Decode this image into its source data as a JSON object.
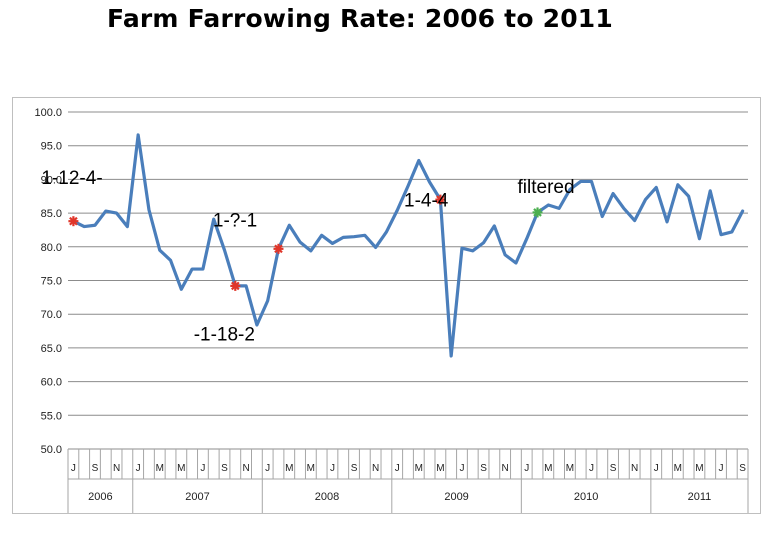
{
  "chart_data": {
    "type": "line",
    "title": "Farm Farrowing Rate: 2006 to 2011",
    "xlabel": "",
    "ylabel": "",
    "ylim": [
      50.0,
      100.0
    ],
    "yticks": [
      "50.0",
      "55.0",
      "60.0",
      "65.0",
      "70.0",
      "75.0",
      "80.0",
      "85.0",
      "90.0",
      "95.0",
      "100.0"
    ],
    "month_labels": [
      "J",
      "S",
      "N",
      "J",
      "M",
      "M",
      "J",
      "S",
      "N",
      "J",
      "M",
      "M",
      "J",
      "S",
      "N",
      "J",
      "M",
      "M",
      "J",
      "S",
      "N",
      "J",
      "M",
      "M",
      "J",
      "S",
      "N",
      "J",
      "M",
      "M",
      "J",
      "S"
    ],
    "years": [
      {
        "label": "2006",
        "span": 6
      },
      {
        "label": "2007",
        "span": 12
      },
      {
        "label": "2008",
        "span": 12
      },
      {
        "label": "2009",
        "span": 12
      },
      {
        "label": "2010",
        "span": 12
      },
      {
        "label": "2011",
        "span": 9
      }
    ],
    "grid": true,
    "legend": "none",
    "series": [
      {
        "color": "#4a7ebb",
        "x": [
          "2006-07",
          "2006-08",
          "2006-09",
          "2006-10",
          "2006-11",
          "2006-12",
          "2007-01",
          "2007-02",
          "2007-03",
          "2007-04",
          "2007-05",
          "2007-06",
          "2007-07",
          "2007-08",
          "2007-09",
          "2007-10",
          "2007-11",
          "2007-12",
          "2008-01",
          "2008-02",
          "2008-03",
          "2008-04",
          "2008-05",
          "2008-06",
          "2008-07",
          "2008-08",
          "2008-09",
          "2008-10",
          "2008-11",
          "2008-12",
          "2009-01",
          "2009-02",
          "2009-03",
          "2009-04",
          "2009-05",
          "2009-06",
          "2009-07",
          "2009-08",
          "2009-09",
          "2009-10",
          "2009-11",
          "2009-12",
          "2010-01",
          "2010-02",
          "2010-03",
          "2010-04",
          "2010-05",
          "2010-06",
          "2010-07",
          "2010-08",
          "2010-09",
          "2010-10",
          "2010-11",
          "2010-12",
          "2011-01",
          "2011-02",
          "2011-03",
          "2011-04",
          "2011-05",
          "2011-06",
          "2011-07",
          "2011-08",
          "2011-09"
        ],
        "values": [
          83.8,
          83.0,
          83.2,
          85.3,
          85.0,
          83.0,
          96.6,
          85.5,
          79.5,
          78.0,
          73.7,
          76.7,
          76.7,
          84.1,
          79.5,
          74.2,
          74.2,
          68.4,
          72.0,
          79.7,
          83.2,
          80.7,
          79.4,
          81.7,
          80.5,
          81.4,
          81.5,
          81.7,
          79.9,
          82.2,
          85.4,
          89.0,
          92.8,
          89.6,
          87.0,
          63.8,
          79.8,
          79.4,
          80.6,
          83.1,
          78.8,
          77.6,
          81.2,
          85.1,
          86.2,
          85.7,
          88.5,
          89.7,
          89.7,
          84.5,
          87.9,
          85.7,
          83.9,
          87.0,
          88.8,
          83.7,
          89.2,
          87.5,
          81.2,
          88.3,
          81.8,
          82.2,
          85.3
        ]
      }
    ],
    "markers": [
      {
        "x": "2006-07",
        "y": 83.8,
        "color": "#e0362a"
      },
      {
        "x": "2007-10",
        "y": 74.2,
        "color": "#e0362a"
      },
      {
        "x": "2008-02",
        "y": 79.7,
        "color": "#e0362a"
      },
      {
        "x": "2009-05",
        "y": 87.0,
        "color": "#e0362a"
      },
      {
        "x": "2010-02",
        "y": 85.1,
        "color": "#4caf50"
      }
    ],
    "annotations": [
      {
        "text": "1-12-4-",
        "x": "2006-07",
        "y": 89.3
      },
      {
        "text": "-1-18-2",
        "x": "2007-08",
        "y": 66.1
      },
      {
        "text": "1-?-1",
        "x": "2007-12",
        "y": 83.0
      },
      {
        "text": "1-4-4",
        "x": "2009-02",
        "y": 86.0
      },
      {
        "text": "filtered",
        "x": "2010-02",
        "y": 88.0
      }
    ]
  }
}
